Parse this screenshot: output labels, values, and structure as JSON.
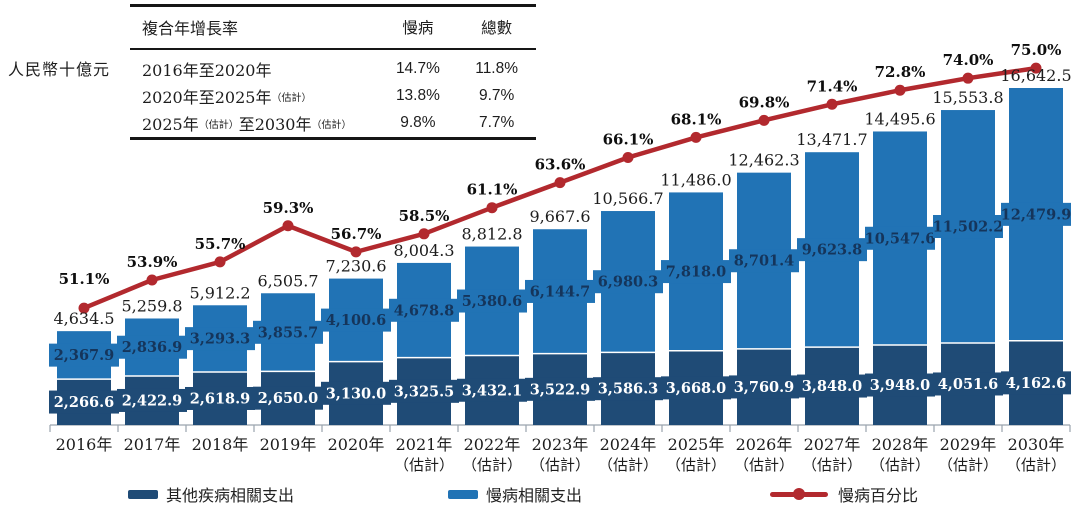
{
  "unit_label": "人民幣十億元",
  "cagr_table": {
    "headers": {
      "period": "複合年增長率",
      "chronic": "慢病",
      "total": "總數"
    },
    "rows": [
      {
        "period": "2016年至2020年",
        "chronic": "14.7%",
        "total": "11.8%"
      },
      {
        "period": "2020年至2025年（估計）",
        "chronic": "13.8%",
        "total": "9.7%"
      },
      {
        "period": "2025年（估計）至2030年（估計）",
        "chronic": "9.8%",
        "total": "7.7%"
      }
    ]
  },
  "chart_data": {
    "type": "bar",
    "subtype": "stacked-bars-with-percentage-line",
    "title": "",
    "xlabel": "",
    "ylabel": "人民幣十億元",
    "y_axis_visible": false,
    "grid": false,
    "value_labels": "on",
    "ylim": [
      0,
      17000
    ],
    "line_ylim_pct": [
      39,
      80
    ],
    "categories": [
      "2016年",
      "2017年",
      "2018年",
      "2019年",
      "2020年",
      "2021年",
      "2022年",
      "2023年",
      "2024年",
      "2025年",
      "2026年",
      "2027年",
      "2028年",
      "2029年",
      "2030年"
    ],
    "estimate_note": "（估計）",
    "estimated_from_index": 5,
    "series": [
      {
        "name": "其他疾病相關支出",
        "color": "#1F4B76",
        "values": [
          2266.6,
          2422.9,
          2618.9,
          2650.0,
          3130.0,
          3325.5,
          3432.1,
          3522.9,
          3586.3,
          3668.0,
          3760.9,
          3848.0,
          3948.0,
          4051.6,
          4162.6
        ]
      },
      {
        "name": "慢病相關支出",
        "color": "#2173B5",
        "values": [
          2367.9,
          2836.9,
          3293.3,
          3855.7,
          4100.6,
          4678.8,
          5380.6,
          6144.7,
          6980.3,
          7818.0,
          8701.4,
          9623.8,
          10547.6,
          11502.2,
          12479.9
        ]
      }
    ],
    "totals": [
      4634.5,
      5259.8,
      5912.2,
      6505.7,
      7230.6,
      8004.3,
      8812.8,
      9667.6,
      10566.7,
      11486.0,
      12462.3,
      13471.7,
      14495.6,
      15553.8,
      16642.5
    ],
    "line_series": {
      "name": "慢病百分比",
      "color": "#B2292E",
      "unit": "%",
      "values": [
        51.1,
        53.9,
        55.7,
        59.3,
        56.7,
        58.5,
        61.1,
        63.6,
        66.1,
        68.1,
        69.8,
        71.4,
        72.8,
        74.0,
        75.0
      ]
    }
  },
  "legend": {
    "items": [
      {
        "label": "其他疾病相關支出",
        "type": "swatch",
        "color": "#1F4B76"
      },
      {
        "label": "慢病相關支出",
        "type": "swatch",
        "color": "#2173B5"
      },
      {
        "label": "慢病百分比",
        "type": "line-dot",
        "color": "#B2292E"
      }
    ]
  }
}
